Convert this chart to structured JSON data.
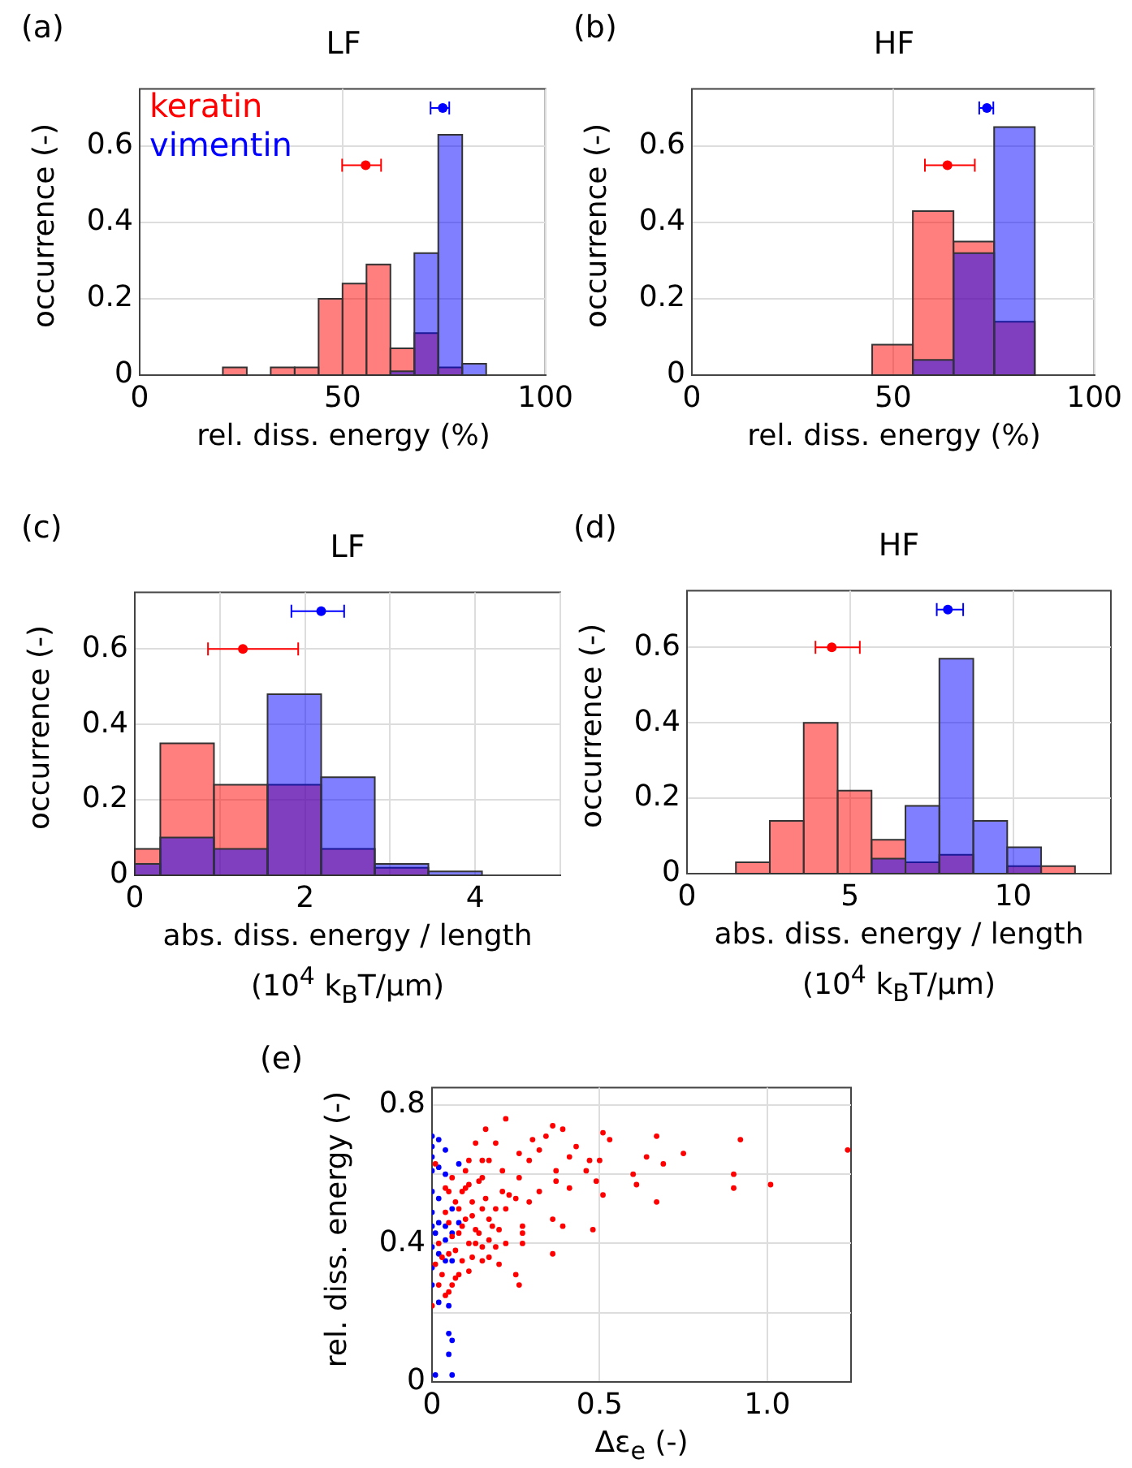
{
  "chart_data": [
    {
      "type": "histogram",
      "title": "LF",
      "xlabel": "rel. diss. energy (%)",
      "ylabel": "occurrence (-)",
      "annotations": [
        "(a)"
      ],
      "xlim": [
        0,
        100
      ],
      "xticks": [
        0,
        50,
        100
      ],
      "ylim": [
        0,
        0.75
      ],
      "yticks": [
        0,
        0.2,
        0.4,
        0.6
      ],
      "grid": true,
      "legend": "top left",
      "series": [
        {
          "name": "keratin",
          "color": "#ff0000",
          "bins": [
            20.5,
            26.4,
            32.3,
            38.2,
            44.1,
            50.0,
            55.9,
            61.8,
            67.7,
            73.6,
            79.5
          ],
          "values": [
            0.02,
            0,
            0.02,
            0.02,
            0.2,
            0.24,
            0.29,
            0.07,
            0.11,
            0.02
          ]
        },
        {
          "name": "vimentin",
          "color": "#0000ff",
          "bins": [
            61.8,
            67.7,
            73.6,
            79.5,
            85.4
          ],
          "values": [
            0.01,
            0.32,
            0.63,
            0.03
          ]
        },
        {
          "type": "scatter",
          "color": "#ff0000",
          "x": [
            55.7
          ],
          "values": [
            0.55
          ],
          "xerrors": [
            [
              49.9,
              59.5
            ]
          ]
        },
        {
          "type": "scatter",
          "color": "#0000ff",
          "x": [
            74.7
          ],
          "values": [
            0.7
          ],
          "xerrors": [
            [
              71.7,
              76.3
            ]
          ]
        }
      ]
    },
    {
      "type": "histogram",
      "title": "HF",
      "xlabel": "rel. diss. energy (%)",
      "ylabel": "occurrence (-)",
      "annotations": [
        "(b)"
      ],
      "xlim": [
        0,
        100
      ],
      "xticks": [
        0,
        50,
        100
      ],
      "ylim": [
        0,
        0.75
      ],
      "yticks": [
        0,
        0.2,
        0.4,
        0.6
      ],
      "grid": true,
      "series": [
        {
          "color": "#ff0000",
          "bins": [
            44.8,
            54.9,
            65.0,
            75.1,
            85.2
          ],
          "values": [
            0.08,
            0.43,
            0.35,
            0.14
          ]
        },
        {
          "color": "#0000ff",
          "bins": [
            54.9,
            65.0,
            75.1,
            85.2
          ],
          "values": [
            0.04,
            0.32,
            0.65
          ]
        },
        {
          "type": "scatter",
          "color": "#ff0000",
          "x": [
            63.5
          ],
          "values": [
            0.55
          ],
          "xerrors": [
            [
              57.9,
              70.3
            ]
          ]
        },
        {
          "type": "scatter",
          "color": "#0000ff",
          "x": [
            73.3
          ],
          "values": [
            0.7
          ],
          "xerrors": [
            [
              71.4,
              74.9
            ]
          ]
        }
      ]
    },
    {
      "type": "histogram",
      "title": "LF",
      "xlabel": "abs. diss. energy / length\n(10$^{4}$ k$_{B}$T/μm)",
      "ylabel": "occurrence (-)",
      "annotations": [
        "(c)"
      ],
      "xlim": [
        0,
        5
      ],
      "xticks": [
        0,
        {
          "value": 1,
          "label": null
        },
        2,
        {
          "value": 3,
          "label": null
        },
        4,
        {
          "value": 5,
          "label": null
        }
      ],
      "ylim": [
        0,
        0.75
      ],
      "yticks": [
        0,
        0.2,
        0.4,
        0.6
      ],
      "grid": true,
      "series": [
        {
          "color": "#ff0000",
          "bins": [
            0,
            0.3,
            0.93,
            1.56,
            2.19,
            2.82,
            3.45
          ],
          "values": [
            0.07,
            0.35,
            0.24,
            0.24,
            0.07,
            0.02
          ]
        },
        {
          "color": "#0000ff",
          "bins": [
            0,
            0.3,
            0.93,
            1.56,
            2.19,
            2.82,
            3.45,
            4.08
          ],
          "values": [
            0.03,
            0.1,
            0.07,
            0.48,
            0.26,
            0.03,
            0.01
          ]
        },
        {
          "type": "scatter",
          "color": "#ff0000",
          "x": [
            1.27
          ],
          "values": [
            0.6
          ],
          "xerrors": [
            [
              0.86,
              1.92
            ]
          ]
        },
        {
          "type": "scatter",
          "color": "#0000ff",
          "x": [
            2.19
          ],
          "values": [
            0.7
          ],
          "xerrors": [
            [
              1.84,
              2.46
            ]
          ]
        }
      ]
    },
    {
      "type": "histogram",
      "title": "HF",
      "xlabel": "abs. diss. energy / length\n(10$^{4}$ k$_{B}$T/μm)",
      "ylabel": "occurrence (-)",
      "annotations": [
        "(d)"
      ],
      "xlim": [
        0,
        13
      ],
      "xticks": [
        0,
        5,
        10
      ],
      "ylim": [
        0,
        0.75
      ],
      "yticks": [
        0,
        0.2,
        0.4,
        0.6
      ],
      "grid": true,
      "series": [
        {
          "color": "#ff0000",
          "bins": [
            1.5,
            2.54,
            3.58,
            4.62,
            5.66,
            6.7,
            7.74,
            8.78,
            9.82,
            10.86,
            11.9
          ],
          "values": [
            0.03,
            0.14,
            0.4,
            0.22,
            0.09,
            0.03,
            0.05,
            0,
            0.02,
            0.02
          ]
        },
        {
          "color": "#0000ff",
          "bins": [
            5.66,
            6.7,
            7.74,
            8.78,
            9.82,
            10.86
          ],
          "values": [
            0.04,
            0.18,
            0.57,
            0.14,
            0.07
          ]
        },
        {
          "type": "scatter",
          "color": "#ff0000",
          "x": [
            4.44
          ],
          "values": [
            0.6
          ],
          "xerrors": [
            [
              3.94,
              5.3
            ]
          ]
        },
        {
          "type": "scatter",
          "color": "#0000ff",
          "x": [
            8.0
          ],
          "values": [
            0.7
          ],
          "xerrors": [
            [
              7.66,
              8.47
            ]
          ]
        }
      ]
    },
    {
      "type": "scatter",
      "xlabel": "Δε$_{e}$ (-)",
      "ylabel": "rel. diss. energy (-)",
      "annotations": [
        "(e)"
      ],
      "xlim": [
        0,
        1.25
      ],
      "xticks": [
        0,
        0.5,
        {
          "value": 1,
          "label": "1.0"
        }
      ],
      "ylim": [
        0,
        0.85
      ],
      "yticks": [
        0,
        {
          "value": 0.2,
          "label": null
        },
        0.4,
        {
          "value": 0.6,
          "label": null
        },
        0.8
      ],
      "grid": true,
      "marker": "circle",
      "series": [
        {
          "color": "#ff0000",
          "x": [
            0.22,
            0.16,
            0.36,
            0.39,
            0.51,
            0.53,
            0.67,
            0.92,
            1.24,
            0.75,
            0.64,
            0.69,
            0.43,
            0.41,
            0.47,
            0.5,
            0.6,
            0.61,
            0.9,
            0.9,
            1.01,
            0.67,
            0.48,
            0.51,
            0.46,
            0.49,
            0.41,
            0.37,
            0.37,
            0.32,
            0.29,
            0.29,
            0.26,
            0.3,
            0.34,
            0.32,
            0.26,
            0.25,
            0.27,
            0.27,
            0.27,
            0.36,
            0.39,
            0.36,
            0.25,
            0.26,
            0.19,
            0.13,
            0.15,
            0.17,
            0.21,
            0.23,
            0.22,
            0.2,
            0.22,
            0.19,
            0.15,
            0.12,
            0.15,
            0.11,
            0.08,
            0.07,
            0.06,
            0.05,
            0.04,
            0.0,
            0.14,
            0.11,
            0.09,
            0.1,
            0.06,
            0.04,
            0.07,
            0.12,
            0.15,
            0.1,
            0.05,
            0.08,
            0.02,
            0.05,
            0.01,
            0.03,
            0.01,
            0.13,
            0.17,
            0.17,
            0.13,
            0.09,
            0.04,
            0.07,
            0.11,
            0.05,
            0.21,
            0.15,
            0.19,
            0.2,
            0.17,
            0.02,
            0.06,
            0.09,
            0.12,
            0.14,
            0.03,
            0.08,
            0.11,
            0.16,
            0.18,
            0.1
          ],
          "values": [
            0.76,
            0.73,
            0.74,
            0.73,
            0.72,
            0.7,
            0.71,
            0.7,
            0.67,
            0.66,
            0.65,
            0.63,
            0.68,
            0.65,
            0.64,
            0.64,
            0.6,
            0.57,
            0.6,
            0.56,
            0.57,
            0.52,
            0.44,
            0.54,
            0.61,
            0.58,
            0.56,
            0.61,
            0.58,
            0.55,
            0.52,
            0.64,
            0.66,
            0.7,
            0.71,
            0.67,
            0.59,
            0.53,
            0.45,
            0.43,
            0.4,
            0.37,
            0.45,
            0.47,
            0.31,
            0.28,
            0.69,
            0.69,
            0.64,
            0.64,
            0.55,
            0.54,
            0.5,
            0.44,
            0.4,
            0.39,
            0.39,
            0.36,
            0.35,
            0.32,
            0.31,
            0.3,
            0.28,
            0.26,
            0.25,
            0.22,
            0.58,
            0.57,
            0.55,
            0.61,
            0.59,
            0.56,
            0.52,
            0.52,
            0.5,
            0.47,
            0.46,
            0.43,
            0.4,
            0.37,
            0.34,
            0.31,
            0.63,
            0.44,
            0.41,
            0.47,
            0.4,
            0.35,
            0.49,
            0.38,
            0.64,
            0.55,
            0.61,
            0.59,
            0.5,
            0.34,
            0.36,
            0.28,
            0.42,
            0.45,
            0.48,
            0.43,
            0.36,
            0.5,
            0.4,
            0.53,
            0.45,
            0.56
          ]
        },
        {
          "color": "#0000ff",
          "x": [
            0,
            0.02,
            0,
            0,
            0.04,
            0.08,
            0.02,
            0,
            0.04,
            0,
            0.02,
            0,
            0.02,
            0,
            0.06,
            0.04,
            0.08,
            0.06,
            0.01,
            0.04,
            0,
            0.02,
            0.04,
            0.06,
            0,
            0,
            0.02,
            0.05,
            0.05,
            0.06,
            0.05,
            0.06,
            0.01
          ],
          "values": [
            0.71,
            0.7,
            0.68,
            0.65,
            0.67,
            0.63,
            0.62,
            0.61,
            0.6,
            0.55,
            0.53,
            0.49,
            0.46,
            0.45,
            0.5,
            0.45,
            0.46,
            0.43,
            0.43,
            0.41,
            0.39,
            0.37,
            0.35,
            0.35,
            0.33,
            0.28,
            0.23,
            0.22,
            0.14,
            0.12,
            0.08,
            0.02,
            0.02
          ]
        }
      ]
    }
  ]
}
